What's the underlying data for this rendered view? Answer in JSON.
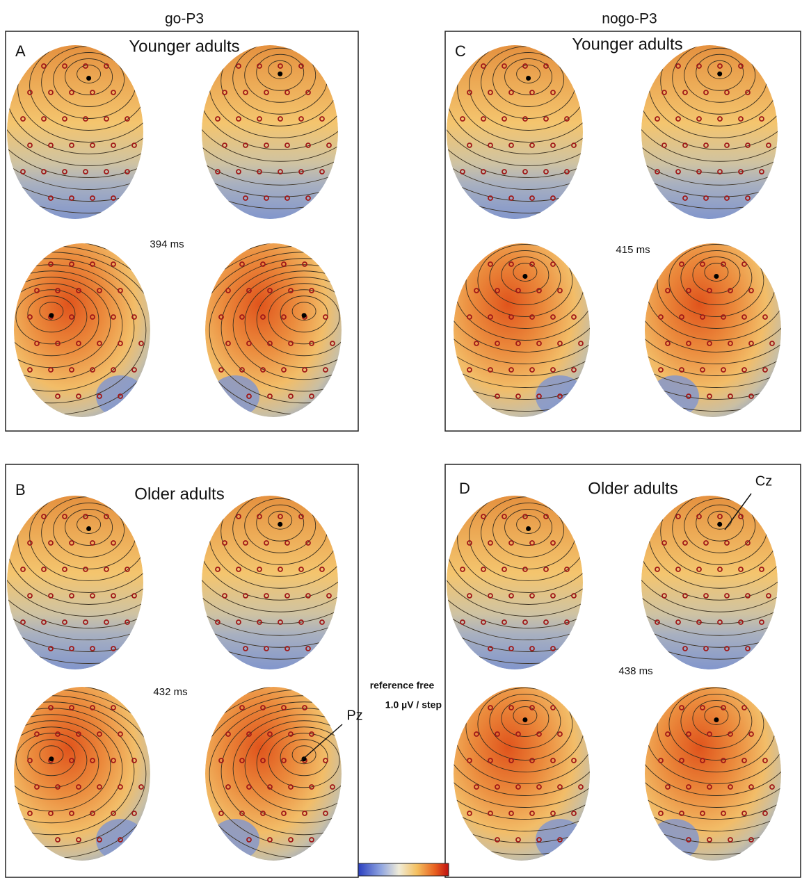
{
  "columns": [
    "go-P3",
    "nogo-P3"
  ],
  "panels": [
    {
      "letter": "A",
      "group": "Younger adults",
      "latency": "394 ms"
    },
    {
      "letter": "C",
      "group": "Younger adults",
      "latency": "415 ms"
    },
    {
      "letter": "B",
      "group": "Older adults",
      "latency": "432 ms"
    },
    {
      "letter": "D",
      "group": "Older adults",
      "latency": "438 ms"
    }
  ],
  "electrodes": [
    "Pz",
    "Cz"
  ],
  "legend": {
    "reference": "reference free",
    "scale": "1.0 µV / step"
  }
}
